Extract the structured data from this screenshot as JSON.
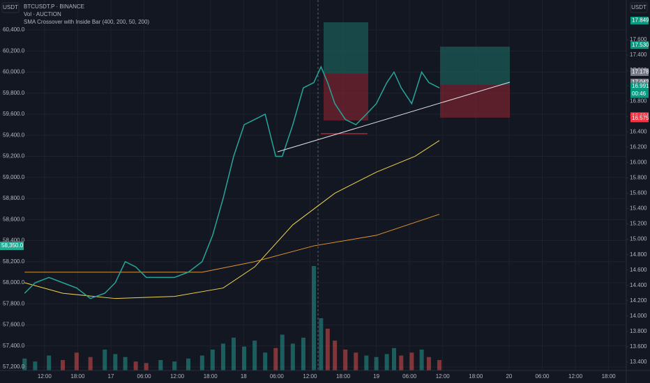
{
  "header": {
    "symbol": "BTCUSDT.P · BINANCE",
    "volume": "Vol · AUCTION",
    "indicator": "SMA Crossover with Inside Bar (400, 200, 50, 200)",
    "left_currency": "USDT",
    "right_currency": "USDT",
    "countdown": "00:46"
  },
  "chart_data": {
    "type": "line",
    "x": [
      -15.6,
      -13.7,
      -11.2,
      -8.7,
      -6.2,
      -3.7,
      -1.1,
      0.8,
      2.6,
      4.5,
      6.4,
      9.0,
      11.5,
      14.0,
      16.5,
      18.4,
      20.3,
      22.2,
      24.1,
      26.0,
      27.9,
      29.8,
      31.0,
      32.9,
      34.8,
      36.7,
      38.0,
      39.2,
      40.5,
      42.4,
      44.3,
      46.2,
      48.0,
      49.9,
      51.2,
      52.5,
      54.4,
      56.2,
      57.5,
      59.4
    ],
    "series": [
      {
        "name": "BTCUSDT.P",
        "color": "#26a69a",
        "values": [
          57900,
          58000,
          58050,
          58000,
          57950,
          57850,
          57900,
          58000,
          58200,
          58150,
          58050,
          58050,
          58050,
          58100,
          58200,
          58450,
          58800,
          59200,
          59500,
          59550,
          59600,
          59200,
          59200,
          59500,
          59850,
          59900,
          60050,
          59900,
          59700,
          59550,
          59500,
          59600,
          59700,
          59900,
          60000,
          59850,
          59700,
          60000,
          59900,
          59850
        ]
      }
    ],
    "volume": [
      8,
      6,
      10,
      7,
      12,
      9,
      14,
      11,
      9,
      6,
      5,
      7,
      6,
      8,
      10,
      14,
      18,
      22,
      16,
      20,
      12,
      15,
      24,
      18,
      22,
      70,
      35,
      28,
      20,
      14,
      12,
      10,
      9,
      11,
      15,
      10,
      12,
      14,
      9,
      7
    ],
    "sma": [
      {
        "color": "#f0d44c",
        "x": [
          -15.6,
          -8.7,
          0.8,
          11.5,
          20.3,
          26.0,
          32.9,
          40.5,
          48.0,
          55.0,
          59.4
        ],
        "values": [
          58000,
          57900,
          57850,
          57870,
          57950,
          58150,
          58550,
          58850,
          59050,
          59200,
          59350
        ]
      },
      {
        "color": "#e6952e",
        "x": [
          -15.6,
          0,
          16.5,
          26.0,
          36.7,
          48.0,
          59.4
        ],
        "values": [
          58100,
          58100,
          58100,
          58200,
          58350,
          58450,
          58650
        ]
      }
    ],
    "xlim": [
      -20.05,
      93.2
    ],
    "xticks": [
      {
        "value": -12,
        "label": "12:00"
      },
      {
        "value": -6,
        "label": "18:00"
      },
      {
        "value": 0,
        "label": "17"
      },
      {
        "value": 6,
        "label": "06:00"
      },
      {
        "value": 12,
        "label": "12:00"
      },
      {
        "value": 18,
        "label": "18:00"
      },
      {
        "value": 24,
        "label": "18"
      },
      {
        "value": 30,
        "label": "06:00"
      },
      {
        "value": 36,
        "label": "12:00"
      },
      {
        "value": 42,
        "label": "18:00"
      },
      {
        "value": 48,
        "label": "19"
      },
      {
        "value": 54,
        "label": "06:00"
      },
      {
        "value": 60,
        "label": "12:00"
      },
      {
        "value": 66,
        "label": "18:00"
      },
      {
        "value": 72,
        "label": "20"
      },
      {
        "value": 78,
        "label": "06:00"
      },
      {
        "value": 84,
        "label": "12:00"
      },
      {
        "value": 90,
        "label": "18:00"
      }
    ],
    "ylim": [
      57167,
      60684
    ],
    "yticks": [
      {
        "value": 57200,
        "label": "57,200.0"
      },
      {
        "value": 57400,
        "label": "57,400.0"
      },
      {
        "value": 57600,
        "label": "57,600.0"
      },
      {
        "value": 57800,
        "label": "57,800.0"
      },
      {
        "value": 58000,
        "label": "58,000.0"
      },
      {
        "value": 58200,
        "label": "58,200.0"
      },
      {
        "value": 58400,
        "label": "58,400.0"
      },
      {
        "value": 58600,
        "label": "58,600.0"
      },
      {
        "value": 58800,
        "label": "58,800.0"
      },
      {
        "value": 59000,
        "label": "59,000.0"
      },
      {
        "value": 59200,
        "label": "59,200.0"
      },
      {
        "value": 59400,
        "label": "59,400.0"
      },
      {
        "value": 59600,
        "label": "59,600.0"
      },
      {
        "value": 59800,
        "label": "59,800.0"
      },
      {
        "value": 60000,
        "label": "60,000.0"
      },
      {
        "value": 60200,
        "label": "60,200.0"
      },
      {
        "value": 60400,
        "label": "60,400.0"
      }
    ],
    "y2lim": [
      13.291,
      18.117
    ],
    "y2ticks": [
      {
        "value": 13.4,
        "label": "13.400"
      },
      {
        "value": 13.6,
        "label": "13.600"
      },
      {
        "value": 13.8,
        "label": "13.800"
      },
      {
        "value": 14.0,
        "label": "14.000"
      },
      {
        "value": 14.2,
        "label": "14.200"
      },
      {
        "value": 14.4,
        "label": "14.400"
      },
      {
        "value": 14.6,
        "label": "14.600"
      },
      {
        "value": 14.8,
        "label": "14.800"
      },
      {
        "value": 15.0,
        "label": "15.000"
      },
      {
        "value": 15.2,
        "label": "15.200"
      },
      {
        "value": 15.4,
        "label": "15.400"
      },
      {
        "value": 15.6,
        "label": "15.600"
      },
      {
        "value": 15.8,
        "label": "15.800"
      },
      {
        "value": 16.0,
        "label": "16.000"
      },
      {
        "value": 16.2,
        "label": "16.200"
      },
      {
        "value": 16.4,
        "label": "16.400"
      },
      {
        "value": 16.6,
        "label": "16.600"
      },
      {
        "value": 16.8,
        "label": "16.800"
      },
      {
        "value": 17.0,
        "label": "17.000"
      },
      {
        "value": 17.2,
        "label": "17.200"
      },
      {
        "value": 17.4,
        "label": "17.400"
      },
      {
        "value": 17.6,
        "label": "17.600"
      }
    ],
    "left_price_label": {
      "value": 58350,
      "label": "58,350.0",
      "color": "#22ab94"
    },
    "right_price_labels": [
      {
        "value": 17.849,
        "label": "17.849",
        "color": "#089981"
      },
      {
        "value": 17.53,
        "label": "17.530",
        "color": "#089981"
      },
      {
        "value": 17.178,
        "label": "17.178",
        "color": "#787b86"
      },
      {
        "value": 17.042,
        "label": "17.042",
        "color": "#787b86"
      },
      {
        "value": 16.991,
        "label": "16.991",
        "color": "#089981"
      },
      {
        "value": 16.604,
        "label": "16.604",
        "color": "#f23645"
      },
      {
        "value": 16.575,
        "label": "16.575",
        "color": "#f23645"
      }
    ],
    "grid": true
  }
}
